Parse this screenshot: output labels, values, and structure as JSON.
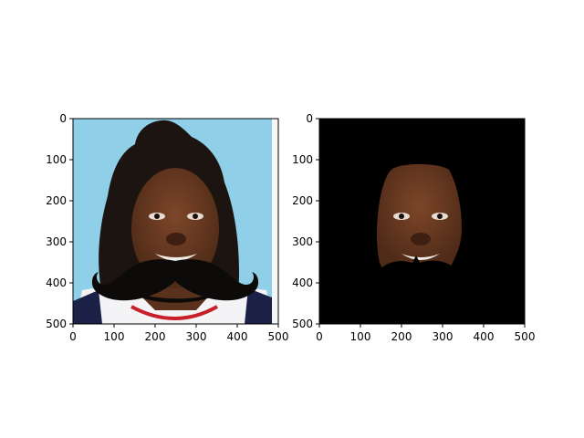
{
  "chart_data": [
    {
      "type": "image",
      "content": "face-photo-with-mustache-overlay",
      "xlim": [
        0,
        500
      ],
      "ylim": [
        500,
        0
      ],
      "x_ticks": [
        0,
        100,
        200,
        300,
        400,
        500
      ],
      "y_ticks": [
        0,
        100,
        200,
        300,
        400,
        500
      ],
      "x_tick_labels": [
        "0",
        "100",
        "200",
        "300",
        "400",
        "500"
      ],
      "y_tick_labels": [
        "0",
        "100",
        "200",
        "300",
        "400",
        "500"
      ],
      "colors": {
        "background": "#8fd0e8",
        "skin": "#6b3a22",
        "hair": "#1c1410",
        "mustache": "#0d0b0a",
        "jersey": "#f4f4f6",
        "jersey_trim": "#1c2148",
        "jersey_red": "#c8202a"
      }
    },
    {
      "type": "image",
      "content": "masked-face-region",
      "xlim": [
        0,
        500
      ],
      "ylim": [
        500,
        0
      ],
      "x_ticks": [
        0,
        100,
        200,
        300,
        400,
        500
      ],
      "y_ticks": [
        0,
        100,
        200,
        300,
        400,
        500
      ],
      "x_tick_labels": [
        "0",
        "100",
        "200",
        "300",
        "400",
        "500"
      ],
      "y_tick_labels": [
        "0",
        "100",
        "200",
        "300",
        "400",
        "500"
      ],
      "colors": {
        "background": "#000000",
        "skin": "#6b3a22"
      }
    }
  ]
}
